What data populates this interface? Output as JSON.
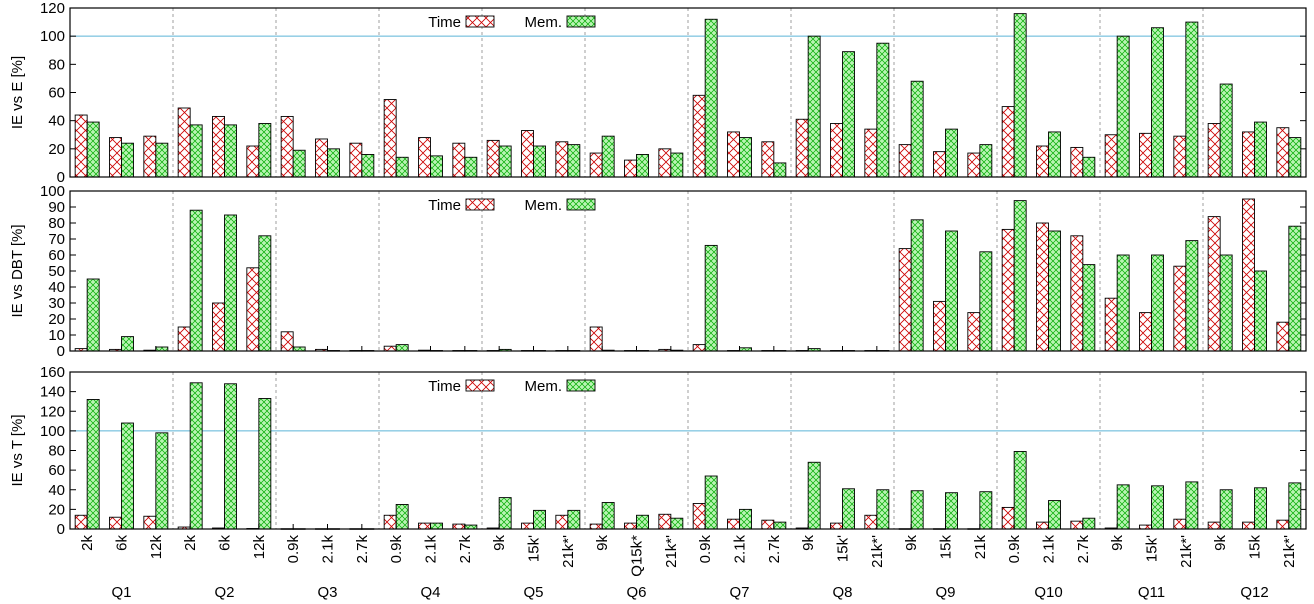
{
  "colors": {
    "time_stroke": "#cc0000",
    "mem_stroke": "#00aa00",
    "mem_fill": "#b9f4b3",
    "reference_line": "#5bb5d6"
  },
  "chart_data": [
    {
      "type": "bar",
      "ylabel": "IE vs E [%]",
      "ylim": [
        0,
        120
      ],
      "yticks": [
        0,
        20,
        40,
        60,
        80,
        100,
        120
      ],
      "reference_line": 100,
      "legend_placement": "top-center",
      "grid": "vertical dashed separators between query groups",
      "series": [
        {
          "name": "Time",
          "values": [
            44,
            28,
            29,
            49,
            43,
            22,
            43,
            27,
            24,
            55,
            28,
            24,
            26,
            33,
            25,
            17,
            12,
            20,
            58,
            32,
            25,
            41,
            38,
            34,
            23,
            18,
            17,
            50,
            22,
            21,
            30,
            31,
            29,
            38,
            32,
            35
          ]
        },
        {
          "name": "Mem.",
          "values": [
            39,
            24,
            24,
            37,
            37,
            38,
            19,
            20,
            16,
            14,
            15,
            14,
            22,
            22,
            23,
            29,
            16,
            17,
            112,
            28,
            10,
            100,
            89,
            95,
            68,
            34,
            23,
            116,
            32,
            14,
            100,
            106,
            110,
            66,
            39,
            28
          ]
        }
      ]
    },
    {
      "type": "bar",
      "ylabel": "IE vs DBT [%]",
      "ylim": [
        0,
        100
      ],
      "yticks": [
        0,
        10,
        20,
        30,
        40,
        50,
        60,
        70,
        80,
        90,
        100
      ],
      "legend_placement": "top-center",
      "grid": "vertical dashed separators between query groups",
      "series": [
        {
          "name": "Time",
          "values": [
            1.5,
            1,
            0.5,
            15,
            30,
            52,
            12,
            1,
            0.3,
            3,
            0.5,
            0.3,
            0.3,
            0.3,
            0.3,
            15,
            0.3,
            1,
            4,
            0.3,
            0.3,
            0.3,
            0.3,
            0.3,
            64,
            31,
            24,
            76,
            80,
            72,
            33,
            24,
            53,
            84,
            95,
            18
          ]
        },
        {
          "name": "Mem.",
          "values": [
            45,
            9,
            2.5,
            88,
            85,
            72,
            2.5,
            0.3,
            0.3,
            4,
            0.3,
            0.3,
            1,
            0.3,
            0.3,
            0.5,
            0.3,
            0.5,
            66,
            2,
            0.3,
            1.5,
            0.3,
            0.3,
            82,
            75,
            62,
            94,
            75,
            54,
            60,
            60,
            69,
            60,
            50,
            78
          ]
        }
      ]
    },
    {
      "type": "bar",
      "ylabel": "IE vs T [%]",
      "ylim": [
        0,
        160
      ],
      "yticks": [
        0,
        20,
        40,
        60,
        80,
        100,
        120,
        140,
        160
      ],
      "reference_line": 100,
      "legend_placement": "top-center",
      "grid": "vertical dashed separators between query groups",
      "categories": [
        "2k",
        "6k",
        "12k",
        "2k",
        "6k",
        "12k",
        "0.9k",
        "2.1k",
        "2.7k",
        "0.9k",
        "2.1k",
        "2.7k",
        "9k",
        "15k'",
        "21k*'",
        "9k",
        "Q15k*",
        "21k*'",
        "0.9k",
        "2.1k",
        "2.7k",
        "9k",
        "15k'",
        "21k*'",
        "9k",
        "15k",
        "21k",
        "0.9k",
        "2.1k",
        "2.7k",
        "9k",
        "15k'",
        "21k*'",
        "9k",
        "15k",
        "21k*'"
      ],
      "groups": [
        "Q1",
        "Q2",
        "Q3",
        "Q4",
        "Q5",
        "Q6",
        "Q7",
        "Q8",
        "Q9",
        "Q10",
        "Q11",
        "Q12"
      ],
      "series": [
        {
          "name": "Time",
          "values": [
            14,
            12,
            13,
            2,
            1,
            0.5,
            0.3,
            0.3,
            0.3,
            14,
            6,
            5,
            1,
            6,
            14,
            5,
            6,
            15,
            26,
            10,
            9,
            1,
            6,
            14,
            0.3,
            0.3,
            0.3,
            22,
            7,
            8,
            1,
            4,
            10,
            7,
            7,
            9
          ]
        },
        {
          "name": "Mem.",
          "values": [
            132,
            108,
            98,
            149,
            148,
            133,
            0.3,
            0.3,
            0.3,
            25,
            6,
            4,
            32,
            19,
            19,
            27,
            14,
            11,
            54,
            20,
            7,
            68,
            41,
            40,
            39,
            37,
            38,
            79,
            29,
            11,
            45,
            44,
            48,
            40,
            42,
            47
          ]
        }
      ]
    }
  ]
}
